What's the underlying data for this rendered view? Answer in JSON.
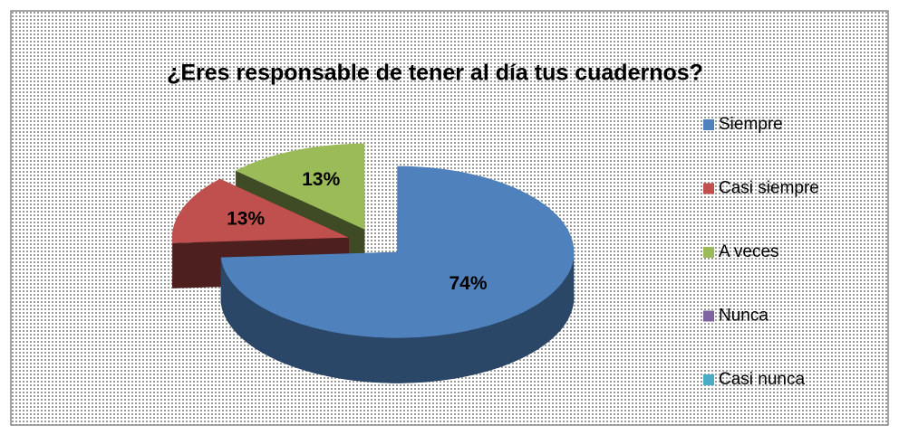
{
  "chart_data": {
    "type": "pie",
    "title": "¿Eres responsable de tener al día tus cuadernos?",
    "categories": [
      "Siempre",
      "Casi siempre",
      "A veces",
      "Nunca",
      "Casi nunca"
    ],
    "values": [
      74,
      13,
      13,
      0,
      0
    ],
    "value_labels": [
      "74%",
      "13%",
      "13%",
      null,
      null
    ],
    "colors": [
      "#4f81bd",
      "#c0504d",
      "#9bbb59",
      "#8064a2",
      "#4bacc6"
    ],
    "legend": "right"
  }
}
